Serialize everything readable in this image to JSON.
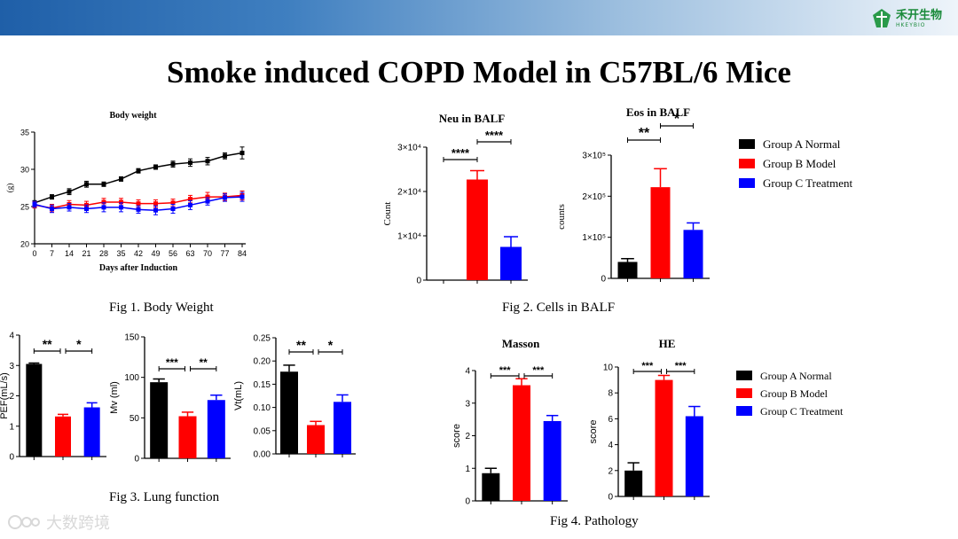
{
  "header": {
    "logo_cn": "禾开生物",
    "logo_en": "HKEYBIO"
  },
  "slide": {
    "title": "Smoke induced COPD Model in C57BL/6 Mice"
  },
  "captions": {
    "fig1": "Fig 1. Body Weight",
    "fig2": "Fig 2. Cells  in  BALF",
    "fig3": "Fig 3. Lung function",
    "fig4": "Fig 4. Pathology"
  },
  "legend_groups": [
    {
      "name": "Group A Normal",
      "color": "#000000"
    },
    {
      "name": "Group B Model",
      "color": "#ff0000"
    },
    {
      "name": "Group C Treatment",
      "color": "#0000ff"
    }
  ],
  "watermark": "大数跨境",
  "chart_data": [
    {
      "id": "body-weight",
      "type": "line",
      "title": "Body weight",
      "xlabel": "Days after Induction",
      "ylabel": "(g)",
      "x": [
        0,
        7,
        14,
        21,
        28,
        35,
        42,
        49,
        56,
        63,
        70,
        77,
        84
      ],
      "ylim": [
        20,
        35
      ],
      "yticks": [
        20,
        25,
        30,
        35
      ],
      "series": [
        {
          "color": "#000000",
          "values": [
            25.5,
            26.3,
            27.0,
            28.0,
            28.0,
            28.7,
            29.8,
            30.3,
            30.7,
            30.9,
            31.1,
            31.8,
            32.2
          ],
          "errors": [
            0.3,
            0.3,
            0.4,
            0.4,
            0.3,
            0.3,
            0.3,
            0.3,
            0.4,
            0.5,
            0.5,
            0.4,
            0.8
          ]
        },
        {
          "color": "#ff0000",
          "values": [
            25.2,
            24.8,
            25.3,
            25.2,
            25.6,
            25.6,
            25.4,
            25.4,
            25.5,
            26.0,
            26.3,
            26.3,
            26.5
          ],
          "errors": [
            0.4,
            0.5,
            0.5,
            0.5,
            0.5,
            0.5,
            0.5,
            0.5,
            0.5,
            0.5,
            0.6,
            0.5,
            0.6
          ]
        },
        {
          "color": "#0000ff",
          "values": [
            25.3,
            24.7,
            24.9,
            24.7,
            24.9,
            24.9,
            24.6,
            24.5,
            24.7,
            25.2,
            25.7,
            26.2,
            26.3
          ],
          "errors": [
            0.4,
            0.5,
            0.5,
            0.5,
            0.6,
            0.6,
            0.5,
            0.6,
            0.6,
            0.6,
            0.5,
            0.5,
            0.6
          ]
        }
      ]
    },
    {
      "id": "neu-balf",
      "type": "bar",
      "title": "Neu in BALF",
      "ylabel": "Count",
      "ylim": [
        0,
        30000
      ],
      "yticks": [
        0,
        10000,
        20000,
        30000
      ],
      "ytick_labels": [
        "0",
        "1×10⁴",
        "2×10⁴",
        "3×10⁴"
      ],
      "values": [
        0,
        22700,
        7500
      ],
      "errors": [
        0,
        2000,
        2300
      ],
      "colors": [
        "#000000",
        "#ff0000",
        "#0000ff"
      ],
      "sig": [
        {
          "from": 0,
          "to": 1,
          "label": "****"
        },
        {
          "from": 1,
          "to": 2,
          "label": "****"
        }
      ]
    },
    {
      "id": "eos-balf",
      "type": "bar",
      "title": "Eos in BALF",
      "ylabel": "counts",
      "ylim": [
        0,
        300000
      ],
      "yticks": [
        0,
        100000,
        200000,
        300000
      ],
      "ytick_labels": [
        "0",
        "1×10⁵",
        "2×10⁵",
        "3×10⁵"
      ],
      "values": [
        40000,
        222000,
        118000
      ],
      "errors": [
        8000,
        45000,
        17000
      ],
      "colors": [
        "#000000",
        "#ff0000",
        "#0000ff"
      ],
      "sig": [
        {
          "from": 0,
          "to": 1,
          "label": "**"
        },
        {
          "from": 1,
          "to": 2,
          "label": "*"
        }
      ]
    },
    {
      "id": "pef",
      "type": "bar",
      "ylabel": "PEF(mL/s)",
      "ylim": [
        0,
        4
      ],
      "yticks": [
        0,
        1,
        2,
        3,
        4
      ],
      "ytick_labels": [
        "0",
        "1",
        "2",
        "3",
        "4"
      ],
      "values": [
        3.05,
        1.32,
        1.62
      ],
      "errors": [
        0.03,
        0.07,
        0.15
      ],
      "colors": [
        "#000000",
        "#ff0000",
        "#0000ff"
      ],
      "sig": [
        {
          "from": 0,
          "to": 1,
          "label": "**"
        },
        {
          "from": 1,
          "to": 2,
          "label": "*"
        }
      ]
    },
    {
      "id": "mv",
      "type": "bar",
      "ylabel": "Mv (ml)",
      "ylim": [
        0,
        150
      ],
      "yticks": [
        0,
        50,
        100,
        150
      ],
      "ytick_labels": [
        "0",
        "50",
        "100",
        "150"
      ],
      "values": [
        94,
        52,
        72
      ],
      "errors": [
        4,
        5,
        6
      ],
      "colors": [
        "#000000",
        "#ff0000",
        "#0000ff"
      ],
      "sig": [
        {
          "from": 0,
          "to": 1,
          "label": "***"
        },
        {
          "from": 1,
          "to": 2,
          "label": "**"
        }
      ]
    },
    {
      "id": "vt",
      "type": "bar",
      "ylabel": "Vt(mL)",
      "ylim": [
        0,
        0.25
      ],
      "yticks": [
        0,
        0.05,
        0.1,
        0.15,
        0.2,
        0.25
      ],
      "ytick_labels": [
        "0.00",
        "0.05",
        "0.10",
        "0.15",
        "0.20",
        "0.25"
      ],
      "values": [
        0.177,
        0.062,
        0.112
      ],
      "errors": [
        0.014,
        0.008,
        0.015
      ],
      "colors": [
        "#000000",
        "#ff0000",
        "#0000ff"
      ],
      "sig": [
        {
          "from": 0,
          "to": 1,
          "label": "**"
        },
        {
          "from": 1,
          "to": 2,
          "label": "*"
        }
      ]
    },
    {
      "id": "masson",
      "type": "bar",
      "title": "Masson",
      "ylabel": "score",
      "ylim": [
        0,
        4
      ],
      "yticks": [
        0,
        1,
        2,
        3,
        4
      ],
      "ytick_labels": [
        "0",
        "1",
        "2",
        "3",
        "4"
      ],
      "values": [
        0.85,
        3.55,
        2.45
      ],
      "errors": [
        0.15,
        0.2,
        0.17
      ],
      "colors": [
        "#000000",
        "#ff0000",
        "#0000ff"
      ],
      "sig": [
        {
          "from": 0,
          "to": 1,
          "label": "***"
        },
        {
          "from": 1,
          "to": 2,
          "label": "***"
        }
      ]
    },
    {
      "id": "he",
      "type": "bar",
      "title": "HE",
      "ylabel": "score",
      "ylim": [
        0,
        10
      ],
      "yticks": [
        0,
        2,
        4,
        6,
        8,
        10
      ],
      "ytick_labels": [
        "0",
        "2",
        "4",
        "6",
        "8",
        "10"
      ],
      "values": [
        2.0,
        9.0,
        6.2
      ],
      "errors": [
        0.6,
        0.35,
        0.75
      ],
      "colors": [
        "#000000",
        "#ff0000",
        "#0000ff"
      ],
      "sig": [
        {
          "from": 0,
          "to": 1,
          "label": "***"
        },
        {
          "from": 1,
          "to": 2,
          "label": "***"
        }
      ]
    }
  ]
}
